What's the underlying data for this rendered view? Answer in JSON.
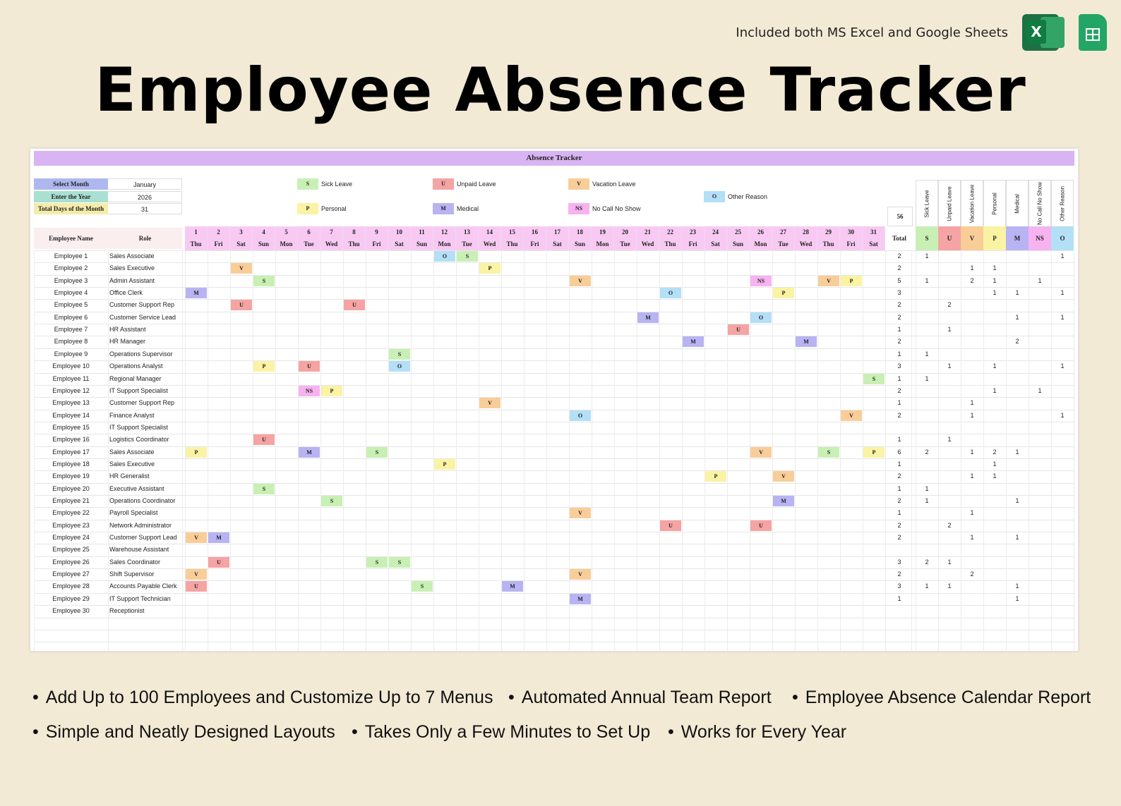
{
  "header": {
    "note": "Included both MS Excel and Google Sheets",
    "title": "Employee Absence Tracker",
    "excel_icon": "excel-icon",
    "sheets_icon": "google-sheets-icon"
  },
  "sheet": {
    "banner": "Absence Tracker",
    "info": [
      {
        "label": "Select Month",
        "value": "January",
        "color": "#aeb8ee"
      },
      {
        "label": "Enter the Year",
        "value": "2026",
        "color": "#a9e0d2"
      },
      {
        "label": "Total Days of the Month",
        "value": "31",
        "color": "#f4ecaa"
      }
    ],
    "legend": [
      {
        "code": "S",
        "name": "Sick Leave",
        "color": "#c9f0b4"
      },
      {
        "code": "U",
        "name": "Unpaid Leave",
        "color": "#f5a3a3"
      },
      {
        "code": "V",
        "name": "Vacation Leave",
        "color": "#f9cd98"
      },
      {
        "code": "O",
        "name": "Other Reason",
        "color": "#b3dff7"
      },
      {
        "code": "P",
        "name": "Personal",
        "color": "#fbf3a4"
      },
      {
        "code": "M",
        "name": "Medical",
        "color": "#b8b3f2"
      },
      {
        "code": "NS",
        "name": "No Call No Show",
        "color": "#f7b2f0"
      }
    ],
    "grand_total": "56",
    "col_employee": "Employee Name",
    "col_role": "Role",
    "col_total": "Total",
    "days": [
      "1",
      "2",
      "3",
      "4",
      "5",
      "6",
      "7",
      "8",
      "9",
      "10",
      "11",
      "12",
      "13",
      "14",
      "15",
      "16",
      "17",
      "18",
      "19",
      "20",
      "21",
      "22",
      "23",
      "24",
      "25",
      "26",
      "27",
      "28",
      "29",
      "30",
      "31"
    ],
    "weekdays": [
      "Thu",
      "Fri",
      "Sat",
      "Sun",
      "Mon",
      "Tue",
      "Wed",
      "Thu",
      "Fri",
      "Sat",
      "Sun",
      "Mon",
      "Tue",
      "Wed",
      "Thu",
      "Fri",
      "Sat",
      "Sun",
      "Mon",
      "Tue",
      "Wed",
      "Thu",
      "Fri",
      "Sat",
      "Sun",
      "Mon",
      "Tue",
      "Wed",
      "Thu",
      "Fri",
      "Sat"
    ],
    "categories": [
      {
        "name": "Sick Leave",
        "code": "S",
        "color": "#c9f0b4"
      },
      {
        "name": "Unpaid Leave",
        "code": "U",
        "color": "#f5a3a3"
      },
      {
        "name": "Vacation Leave",
        "code": "V",
        "color": "#f9cd98"
      },
      {
        "name": "Personal",
        "code": "P",
        "color": "#fbf3a4"
      },
      {
        "name": "Medical",
        "code": "M",
        "color": "#b8b3f2"
      },
      {
        "name": "No Call No Show",
        "code": "NS",
        "color": "#f7b2f0"
      },
      {
        "name": "Other Reason",
        "code": "O",
        "color": "#b3dff7"
      }
    ],
    "employees": [
      {
        "name": "Employee 1",
        "role": "Sales Associate",
        "marks": {
          "12": "O",
          "13": "S"
        },
        "total": "2",
        "counts": [
          "1",
          "",
          "",
          "",
          "",
          "",
          "1"
        ]
      },
      {
        "name": "Employee 2",
        "role": "Sales Executive",
        "marks": {
          "3": "V",
          "14": "P"
        },
        "total": "2",
        "counts": [
          "",
          "",
          "1",
          "1",
          "",
          "",
          ""
        ]
      },
      {
        "name": "Employee 3",
        "role": "Admin Assistant",
        "marks": {
          "4": "S",
          "18": "V",
          "26": "NS",
          "29": "V",
          "30": "P"
        },
        "total": "5",
        "counts": [
          "1",
          "",
          "2",
          "1",
          "",
          "1",
          ""
        ]
      },
      {
        "name": "Employee 4",
        "role": "Office Clerk",
        "marks": {
          "1": "M",
          "22": "O",
          "27": "P"
        },
        "total": "3",
        "counts": [
          "",
          "",
          "",
          "1",
          "1",
          "",
          "1"
        ]
      },
      {
        "name": "Employee 5",
        "role": "Customer Support Rep",
        "marks": {
          "3": "U",
          "8": "U"
        },
        "total": "2",
        "counts": [
          "",
          "2",
          "",
          "",
          "",
          "",
          ""
        ]
      },
      {
        "name": "Employee 6",
        "role": "Customer Service Lead",
        "marks": {
          "21": "M",
          "26": "O"
        },
        "total": "2",
        "counts": [
          "",
          "",
          "",
          "",
          "1",
          "",
          "1"
        ]
      },
      {
        "name": "Employee 7",
        "role": "HR Assistant",
        "marks": {
          "25": "U"
        },
        "total": "1",
        "counts": [
          "",
          "1",
          "",
          "",
          "",
          "",
          ""
        ]
      },
      {
        "name": "Employee 8",
        "role": "HR Manager",
        "marks": {
          "23": "M",
          "28": "M"
        },
        "total": "2",
        "counts": [
          "",
          "",
          "",
          "",
          "2",
          "",
          ""
        ]
      },
      {
        "name": "Employee 9",
        "role": "Operations Supervisor",
        "marks": {
          "10": "S"
        },
        "total": "1",
        "counts": [
          "1",
          "",
          "",
          "",
          "",
          "",
          ""
        ]
      },
      {
        "name": "Employee 10",
        "role": "Operations Analyst",
        "marks": {
          "4": "P",
          "6": "U",
          "10": "O"
        },
        "total": "3",
        "counts": [
          "",
          "1",
          "",
          "1",
          "",
          "",
          "1"
        ]
      },
      {
        "name": "Employee 11",
        "role": "Regional Manager",
        "marks": {
          "31": "S"
        },
        "total": "1",
        "counts": [
          "1",
          "",
          "",
          "",
          "",
          "",
          ""
        ]
      },
      {
        "name": "Employee 12",
        "role": "IT Support Specialist",
        "marks": {
          "6": "NS",
          "7": "P"
        },
        "total": "2",
        "counts": [
          "",
          "",
          "",
          "1",
          "",
          "1",
          ""
        ]
      },
      {
        "name": "Employee 13",
        "role": "Customer Support Rep",
        "marks": {
          "14": "V"
        },
        "total": "1",
        "counts": [
          "",
          "",
          "1",
          "",
          "",
          "",
          ""
        ]
      },
      {
        "name": "Employee 14",
        "role": "Finance Analyst",
        "marks": {
          "18": "O",
          "30": "V"
        },
        "total": "2",
        "counts": [
          "",
          "",
          "1",
          "",
          "",
          "",
          "1"
        ]
      },
      {
        "name": "Employee 15",
        "role": "IT Support Specialist",
        "marks": {},
        "total": "",
        "counts": [
          "",
          "",
          "",
          "",
          "",
          "",
          ""
        ]
      },
      {
        "name": "Employee 16",
        "role": "Logistics Coordinator",
        "marks": {
          "4": "U"
        },
        "total": "1",
        "counts": [
          "",
          "1",
          "",
          "",
          "",
          "",
          ""
        ]
      },
      {
        "name": "Employee 17",
        "role": "Sales Associate",
        "marks": {
          "1": "P",
          "6": "M",
          "9": "S",
          "26": "V",
          "29": "S",
          "31": "P"
        },
        "total": "6",
        "counts": [
          "2",
          "",
          "1",
          "2",
          "1",
          "",
          ""
        ]
      },
      {
        "name": "Employee 18",
        "role": "Sales Executive",
        "marks": {
          "12": "P"
        },
        "total": "1",
        "counts": [
          "",
          "",
          "",
          "1",
          "",
          "",
          ""
        ]
      },
      {
        "name": "Employee 19",
        "role": "HR Generalist",
        "marks": {
          "24": "P",
          "27": "V"
        },
        "total": "2",
        "counts": [
          "",
          "",
          "1",
          "1",
          "",
          "",
          ""
        ]
      },
      {
        "name": "Employee 20",
        "role": "Executive Assistant",
        "marks": {
          "4": "S"
        },
        "total": "1",
        "counts": [
          "1",
          "",
          "",
          "",
          "",
          "",
          ""
        ]
      },
      {
        "name": "Employee 21",
        "role": "Operations Coordinator",
        "marks": {
          "7": "S",
          "27": "M"
        },
        "total": "2",
        "counts": [
          "1",
          "",
          "",
          "",
          "1",
          "",
          ""
        ]
      },
      {
        "name": "Employee 22",
        "role": "Payroll Specialist",
        "marks": {
          "18": "V"
        },
        "total": "1",
        "counts": [
          "",
          "",
          "1",
          "",
          "",
          "",
          ""
        ]
      },
      {
        "name": "Employee 23",
        "role": "Network Administrator",
        "marks": {
          "22": "U",
          "26": "U"
        },
        "total": "2",
        "counts": [
          "",
          "2",
          "",
          "",
          "",
          "",
          ""
        ]
      },
      {
        "name": "Employee 24",
        "role": "Customer Support Lead",
        "marks": {
          "1": "V",
          "2": "M"
        },
        "total": "2",
        "counts": [
          "",
          "",
          "1",
          "",
          "1",
          "",
          ""
        ]
      },
      {
        "name": "Employee 25",
        "role": "Warehouse Assistant",
        "marks": {},
        "total": "",
        "counts": [
          "",
          "",
          "",
          "",
          "",
          "",
          ""
        ]
      },
      {
        "name": "Employee 26",
        "role": "Sales Coordinator",
        "marks": {
          "2": "U",
          "9": "S",
          "10": "S"
        },
        "total": "3",
        "counts": [
          "2",
          "1",
          "",
          "",
          "",
          "",
          ""
        ]
      },
      {
        "name": "Employee 27",
        "role": "Shift Supervisor",
        "marks": {
          "1": "V",
          "18": "V"
        },
        "total": "2",
        "counts": [
          "",
          "",
          "2",
          "",
          "",
          "",
          ""
        ]
      },
      {
        "name": "Employee 28",
        "role": "Accounts Payable Clerk",
        "marks": {
          "1": "U",
          "11": "S",
          "15": "M"
        },
        "total": "3",
        "counts": [
          "1",
          "1",
          "",
          "",
          "1",
          "",
          ""
        ]
      },
      {
        "name": "Employee 29",
        "role": "IT Support Technician",
        "marks": {
          "18": "M"
        },
        "total": "1",
        "counts": [
          "",
          "",
          "",
          "",
          "1",
          "",
          ""
        ]
      },
      {
        "name": "Employee 30",
        "role": "Receptionist",
        "marks": {},
        "total": "",
        "counts": [
          "",
          "",
          "",
          "",
          "",
          "",
          ""
        ]
      }
    ]
  },
  "features": [
    "Add Up to 100 Employees and Customize Up to 7 Menus",
    "Automated Annual Team Report",
    "Employee Absence Calendar Report",
    "Simple and Neatly Designed Layouts",
    "Takes Only a Few Minutes to Set Up",
    "Works for Every Year"
  ]
}
